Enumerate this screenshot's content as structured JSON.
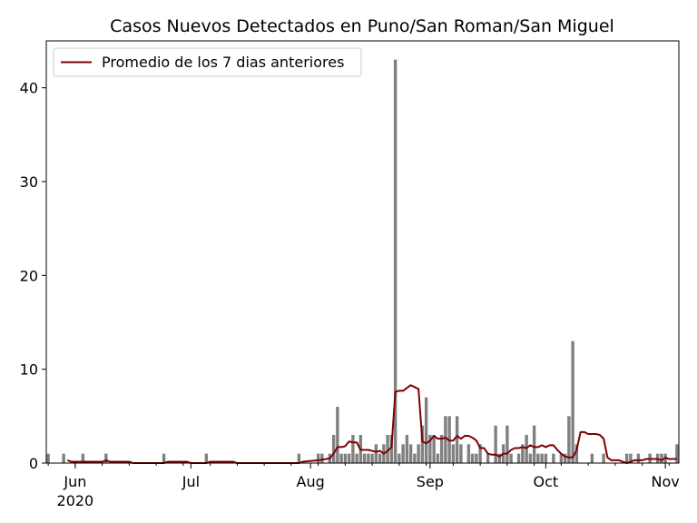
{
  "chart_data": {
    "type": "bar",
    "title": "Casos Nuevos Detectados en Puno/San Roman/San Miguel",
    "xlabel": "",
    "ylabel": "",
    "x_range": [
      "2020-05-25",
      "2020-11-04"
    ],
    "ylim": [
      0,
      45
    ],
    "y_ticks": [
      0,
      10,
      20,
      30,
      40
    ],
    "x_ticks": [
      {
        "date": "2020-06-01",
        "label": "Jun",
        "sublabel": "2020"
      },
      {
        "date": "2020-07-01",
        "label": "Jul",
        "sublabel": ""
      },
      {
        "date": "2020-08-01",
        "label": "Aug",
        "sublabel": ""
      },
      {
        "date": "2020-09-01",
        "label": "Sep",
        "sublabel": ""
      },
      {
        "date": "2020-10-01",
        "label": "Oct",
        "sublabel": ""
      },
      {
        "date": "2020-11-01",
        "label": "Nov",
        "sublabel": ""
      }
    ],
    "grid": false,
    "legend_position": "top-left",
    "bar_color": "#808080",
    "line_color": "#800000",
    "series": [
      {
        "name": "",
        "kind": "bar",
        "points": [
          [
            "2020-05-25",
            1
          ],
          [
            "2020-05-29",
            1
          ],
          [
            "2020-06-03",
            1
          ],
          [
            "2020-06-09",
            1
          ],
          [
            "2020-06-24",
            1
          ],
          [
            "2020-07-05",
            1
          ],
          [
            "2020-07-29",
            1
          ],
          [
            "2020-08-03",
            1
          ],
          [
            "2020-08-04",
            1
          ],
          [
            "2020-08-06",
            1
          ],
          [
            "2020-08-07",
            3
          ],
          [
            "2020-08-08",
            6
          ],
          [
            "2020-08-09",
            1
          ],
          [
            "2020-08-10",
            1
          ],
          [
            "2020-08-11",
            1
          ],
          [
            "2020-08-12",
            3
          ],
          [
            "2020-08-13",
            1
          ],
          [
            "2020-08-14",
            3
          ],
          [
            "2020-08-15",
            1
          ],
          [
            "2020-08-16",
            1
          ],
          [
            "2020-08-17",
            1
          ],
          [
            "2020-08-18",
            2
          ],
          [
            "2020-08-19",
            1
          ],
          [
            "2020-08-20",
            2
          ],
          [
            "2020-08-21",
            3
          ],
          [
            "2020-08-22",
            3
          ],
          [
            "2020-08-23",
            43
          ],
          [
            "2020-08-24",
            1
          ],
          [
            "2020-08-25",
            2
          ],
          [
            "2020-08-26",
            3
          ],
          [
            "2020-08-27",
            2
          ],
          [
            "2020-08-28",
            1
          ],
          [
            "2020-08-29",
            2
          ],
          [
            "2020-08-30",
            4
          ],
          [
            "2020-08-31",
            7
          ],
          [
            "2020-09-01",
            3
          ],
          [
            "2020-09-02",
            3
          ],
          [
            "2020-09-03",
            1
          ],
          [
            "2020-09-04",
            3
          ],
          [
            "2020-09-05",
            5
          ],
          [
            "2020-09-06",
            5
          ],
          [
            "2020-09-07",
            2
          ],
          [
            "2020-09-08",
            5
          ],
          [
            "2020-09-09",
            2
          ],
          [
            "2020-09-11",
            2
          ],
          [
            "2020-09-12",
            1
          ],
          [
            "2020-09-13",
            1
          ],
          [
            "2020-09-14",
            2
          ],
          [
            "2020-09-16",
            1
          ],
          [
            "2020-09-18",
            4
          ],
          [
            "2020-09-19",
            1
          ],
          [
            "2020-09-20",
            2
          ],
          [
            "2020-09-21",
            4
          ],
          [
            "2020-09-22",
            1
          ],
          [
            "2020-09-24",
            1
          ],
          [
            "2020-09-25",
            2
          ],
          [
            "2020-09-26",
            3
          ],
          [
            "2020-09-27",
            1
          ],
          [
            "2020-09-28",
            4
          ],
          [
            "2020-09-29",
            1
          ],
          [
            "2020-09-30",
            1
          ],
          [
            "2020-10-01",
            1
          ],
          [
            "2020-10-03",
            1
          ],
          [
            "2020-10-05",
            1
          ],
          [
            "2020-10-06",
            1
          ],
          [
            "2020-10-07",
            5
          ],
          [
            "2020-10-08",
            13
          ],
          [
            "2020-10-09",
            2
          ],
          [
            "2020-10-13",
            1
          ],
          [
            "2020-10-16",
            1
          ],
          [
            "2020-10-22",
            1
          ],
          [
            "2020-10-23",
            1
          ],
          [
            "2020-10-25",
            1
          ],
          [
            "2020-10-28",
            1
          ],
          [
            "2020-10-30",
            1
          ],
          [
            "2020-10-31",
            1
          ],
          [
            "2020-11-01",
            1
          ],
          [
            "2020-11-04",
            2
          ]
        ]
      },
      {
        "name": "Promedio de los 7 dias anteriores",
        "kind": "line",
        "points": [
          [
            "2020-05-30",
            0.3
          ],
          [
            "2020-05-31",
            0.14
          ],
          [
            "2020-06-08",
            0.14
          ],
          [
            "2020-06-09",
            0.3
          ],
          [
            "2020-06-10",
            0.14
          ],
          [
            "2020-06-15",
            0.14
          ],
          [
            "2020-06-16",
            0.0
          ],
          [
            "2020-06-24",
            0.0
          ],
          [
            "2020-06-25",
            0.14
          ],
          [
            "2020-06-30",
            0.14
          ],
          [
            "2020-07-01",
            0.0
          ],
          [
            "2020-07-05",
            0.0
          ],
          [
            "2020-07-06",
            0.14
          ],
          [
            "2020-07-12",
            0.14
          ],
          [
            "2020-07-13",
            0.0
          ],
          [
            "2020-07-29",
            0.0
          ],
          [
            "2020-07-30",
            0.14
          ],
          [
            "2020-08-03",
            0.3
          ],
          [
            "2020-08-05",
            0.43
          ],
          [
            "2020-08-06",
            0.5
          ],
          [
            "2020-08-07",
            1.0
          ],
          [
            "2020-08-08",
            1.7
          ],
          [
            "2020-08-09",
            1.7
          ],
          [
            "2020-08-10",
            1.8
          ],
          [
            "2020-08-11",
            2.3
          ],
          [
            "2020-08-12",
            2.2
          ],
          [
            "2020-08-13",
            2.2
          ],
          [
            "2020-08-14",
            1.4
          ],
          [
            "2020-08-15",
            1.4
          ],
          [
            "2020-08-16",
            1.4
          ],
          [
            "2020-08-17",
            1.3
          ],
          [
            "2020-08-18",
            1.2
          ],
          [
            "2020-08-19",
            1.3
          ],
          [
            "2020-08-20",
            1.0
          ],
          [
            "2020-08-21",
            1.3
          ],
          [
            "2020-08-22",
            1.7
          ],
          [
            "2020-08-23",
            7.6
          ],
          [
            "2020-08-24",
            7.7
          ],
          [
            "2020-08-25",
            7.7
          ],
          [
            "2020-08-26",
            8.0
          ],
          [
            "2020-08-27",
            8.3
          ],
          [
            "2020-08-28",
            8.1
          ],
          [
            "2020-08-29",
            7.9
          ],
          [
            "2020-08-30",
            2.3
          ],
          [
            "2020-08-31",
            2.1
          ],
          [
            "2020-09-01",
            2.4
          ],
          [
            "2020-09-02",
            2.9
          ],
          [
            "2020-09-03",
            2.6
          ],
          [
            "2020-09-04",
            2.6
          ],
          [
            "2020-09-05",
            2.7
          ],
          [
            "2020-09-06",
            2.4
          ],
          [
            "2020-09-07",
            2.4
          ],
          [
            "2020-09-08",
            2.9
          ],
          [
            "2020-09-09",
            2.6
          ],
          [
            "2020-09-10",
            2.9
          ],
          [
            "2020-09-11",
            2.9
          ],
          [
            "2020-09-12",
            2.7
          ],
          [
            "2020-09-13",
            2.4
          ],
          [
            "2020-09-14",
            1.6
          ],
          [
            "2020-09-15",
            1.6
          ],
          [
            "2020-09-16",
            1.0
          ],
          [
            "2020-09-17",
            0.9
          ],
          [
            "2020-09-18",
            0.9
          ],
          [
            "2020-09-19",
            0.7
          ],
          [
            "2020-09-20",
            1.0
          ],
          [
            "2020-09-21",
            1.0
          ],
          [
            "2020-09-22",
            1.4
          ],
          [
            "2020-09-23",
            1.6
          ],
          [
            "2020-09-24",
            1.6
          ],
          [
            "2020-09-25",
            1.7
          ],
          [
            "2020-09-26",
            1.6
          ],
          [
            "2020-09-27",
            1.9
          ],
          [
            "2020-09-28",
            1.7
          ],
          [
            "2020-09-29",
            1.7
          ],
          [
            "2020-09-30",
            1.9
          ],
          [
            "2020-10-01",
            1.7
          ],
          [
            "2020-10-02",
            1.9
          ],
          [
            "2020-10-03",
            1.9
          ],
          [
            "2020-10-04",
            1.4
          ],
          [
            "2020-10-05",
            1.0
          ],
          [
            "2020-10-06",
            0.7
          ],
          [
            "2020-10-07",
            0.6
          ],
          [
            "2020-10-08",
            0.6
          ],
          [
            "2020-10-09",
            1.4
          ],
          [
            "2020-10-10",
            3.3
          ],
          [
            "2020-10-11",
            3.3
          ],
          [
            "2020-10-12",
            3.1
          ],
          [
            "2020-10-13",
            3.1
          ],
          [
            "2020-10-14",
            3.1
          ],
          [
            "2020-10-15",
            3.0
          ],
          [
            "2020-10-16",
            2.6
          ],
          [
            "2020-10-17",
            0.6
          ],
          [
            "2020-10-18",
            0.3
          ],
          [
            "2020-10-19",
            0.3
          ],
          [
            "2020-10-20",
            0.3
          ],
          [
            "2020-10-21",
            0.14
          ],
          [
            "2020-10-22",
            0.0
          ],
          [
            "2020-10-23",
            0.14
          ],
          [
            "2020-10-24",
            0.3
          ],
          [
            "2020-10-25",
            0.3
          ],
          [
            "2020-10-26",
            0.3
          ],
          [
            "2020-10-27",
            0.43
          ],
          [
            "2020-10-28",
            0.43
          ],
          [
            "2020-10-29",
            0.43
          ],
          [
            "2020-10-30",
            0.43
          ],
          [
            "2020-10-31",
            0.3
          ],
          [
            "2020-11-01",
            0.57
          ],
          [
            "2020-11-02",
            0.43
          ],
          [
            "2020-11-03",
            0.43
          ],
          [
            "2020-11-04",
            0.43
          ]
        ]
      }
    ]
  }
}
